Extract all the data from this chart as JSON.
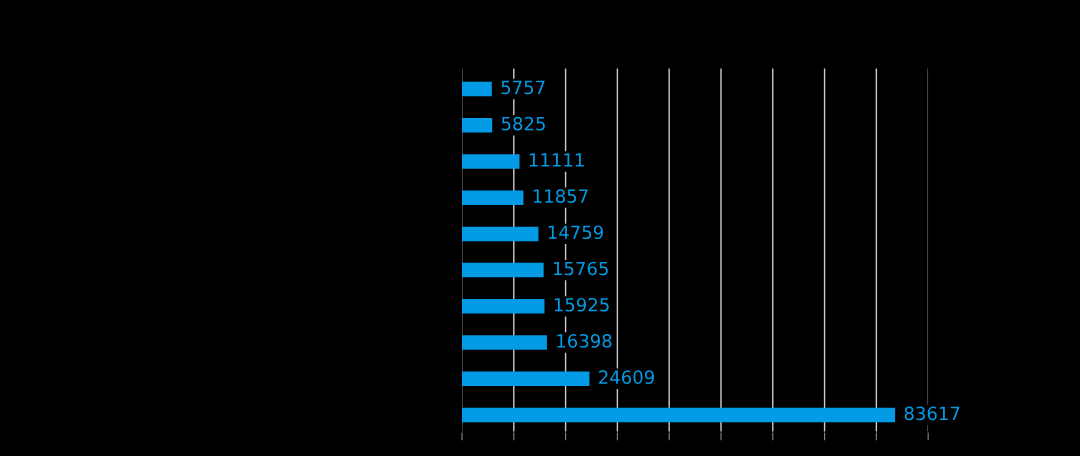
{
  "chart_data": {
    "type": "bar",
    "orientation": "horizontal",
    "categories": [
      null,
      null,
      null,
      null,
      null,
      null,
      null,
      null,
      null,
      null
    ],
    "values": [
      5757,
      5825,
      11111,
      11857,
      14759,
      15765,
      15925,
      16398,
      24609,
      83617
    ],
    "color": "#039be5",
    "xlim": [
      0,
      90000
    ],
    "xticks": [
      {
        "value": 0,
        "label": null
      },
      {
        "value": 10000,
        "label": null
      },
      {
        "value": 20000,
        "label": null
      },
      {
        "value": 30000,
        "label": null
      },
      {
        "value": 40000,
        "label": null
      },
      {
        "value": 50000,
        "label": null
      },
      {
        "value": 60000,
        "label": null
      },
      {
        "value": 70000,
        "label": null
      },
      {
        "value": 80000,
        "label": null
      },
      {
        "value": 90000,
        "label": null
      }
    ],
    "grid": "x",
    "data_labels": true,
    "legend": false
  }
}
